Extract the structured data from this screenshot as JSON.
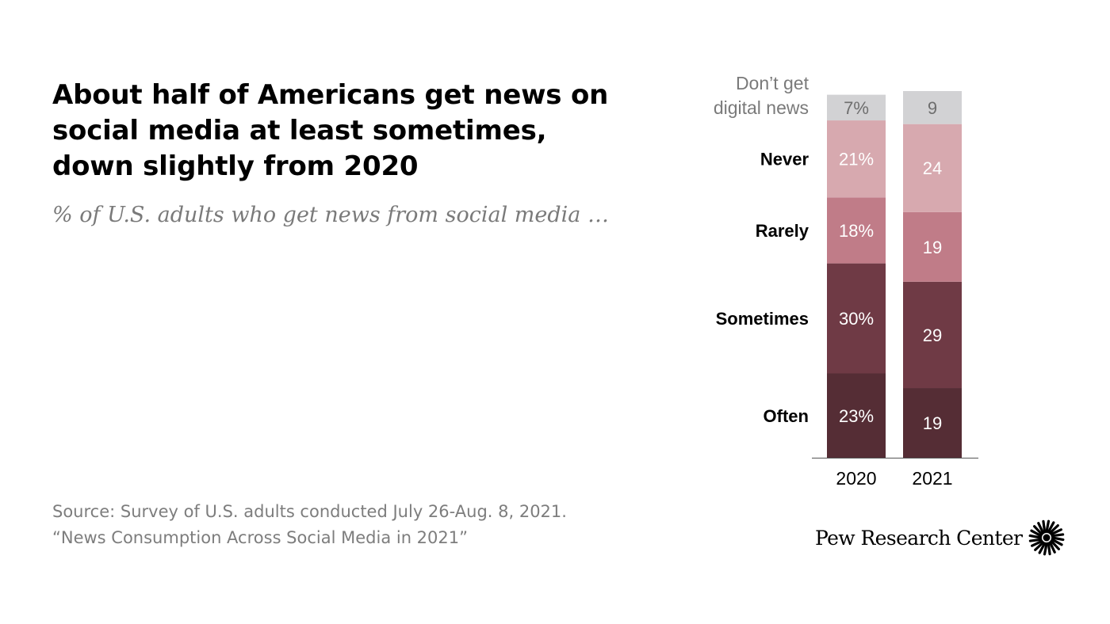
{
  "title": "About half of Americans get news on social media at least sometimes, down slightly from 2020",
  "subtitle": "% of U.S. adults who get news from social media …",
  "source": {
    "line1": "Source: Survey of U.S. adults conducted July 26-Aug. 8, 2021.",
    "line2": "“News Consumption Across Social Media in 2021”"
  },
  "logo": {
    "text": "Pew Research Center",
    "icon": "pew-sunburst-icon"
  },
  "chart_data": {
    "type": "bar",
    "stacked": true,
    "orientation": "vertical",
    "categories": [
      "2020",
      "2021"
    ],
    "series": [
      {
        "name": "Often",
        "values": [
          23,
          19
        ],
        "labels": [
          "23%",
          "19"
        ],
        "color": "#552d35",
        "label_color": "#ffffff",
        "category_label_style": "bold"
      },
      {
        "name": "Sometimes",
        "values": [
          30,
          29
        ],
        "labels": [
          "30%",
          "29"
        ],
        "color": "#6f3a45",
        "label_color": "#ffffff",
        "category_label_style": "bold"
      },
      {
        "name": "Rarely",
        "values": [
          18,
          19
        ],
        "labels": [
          "18%",
          "19"
        ],
        "color": "#c07c88",
        "label_color": "#ffffff",
        "category_label_style": "bold"
      },
      {
        "name": "Never",
        "values": [
          21,
          24
        ],
        "labels": [
          "21%",
          "24"
        ],
        "color": "#d7a9af",
        "label_color": "#ffffff",
        "category_label_style": "bold"
      },
      {
        "name": "Don’t get digital news",
        "name_lines": [
          "Don’t get",
          "digital news"
        ],
        "values": [
          7,
          9
        ],
        "labels": [
          "7%",
          "9"
        ],
        "color": "#d2d2d4",
        "label_color": "#6e6e6e",
        "category_label_style": "normal"
      }
    ],
    "ylim": [
      0,
      100
    ],
    "grid": false,
    "legend": "left-of-bars",
    "xlabel": "",
    "ylabel": ""
  }
}
